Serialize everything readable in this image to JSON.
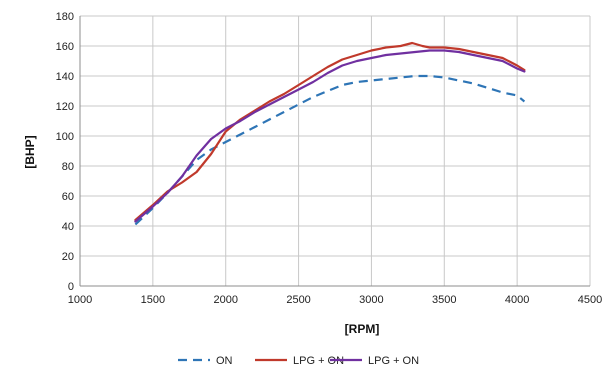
{
  "chart_data": {
    "type": "line",
    "xlabel": "[RPM]",
    "ylabel": "[BHP]",
    "xlim": [
      1000,
      4500
    ],
    "ylim": [
      0,
      180
    ],
    "xticks": [
      1000,
      1500,
      2000,
      2500,
      3000,
      3500,
      4000,
      4500
    ],
    "yticks": [
      0,
      20,
      40,
      60,
      80,
      100,
      120,
      140,
      160,
      180
    ],
    "grid": true,
    "legend_position": "bottom",
    "series": [
      {
        "name": "ON",
        "color": "#2e75b6",
        "style": "dashed",
        "points": [
          [
            1380,
            41
          ],
          [
            1500,
            52
          ],
          [
            1600,
            62
          ],
          [
            1700,
            73
          ],
          [
            1800,
            84
          ],
          [
            1900,
            91
          ],
          [
            2000,
            96
          ],
          [
            2100,
            101
          ],
          [
            2200,
            106
          ],
          [
            2300,
            111
          ],
          [
            2400,
            116
          ],
          [
            2500,
            121
          ],
          [
            2600,
            126
          ],
          [
            2700,
            130
          ],
          [
            2800,
            134
          ],
          [
            2900,
            136
          ],
          [
            3000,
            137
          ],
          [
            3100,
            138
          ],
          [
            3200,
            139
          ],
          [
            3300,
            140
          ],
          [
            3400,
            140
          ],
          [
            3500,
            139
          ],
          [
            3600,
            137
          ],
          [
            3700,
            135
          ],
          [
            3800,
            132
          ],
          [
            3900,
            129
          ],
          [
            4000,
            127
          ],
          [
            4050,
            123
          ]
        ]
      },
      {
        "name": "LPG + ON",
        "color": "#c0392b",
        "style": "solid",
        "points": [
          [
            1380,
            44
          ],
          [
            1500,
            54
          ],
          [
            1600,
            63
          ],
          [
            1700,
            69
          ],
          [
            1800,
            76
          ],
          [
            1900,
            88
          ],
          [
            2000,
            103
          ],
          [
            2100,
            111
          ],
          [
            2200,
            117
          ],
          [
            2300,
            123
          ],
          [
            2400,
            128
          ],
          [
            2500,
            134
          ],
          [
            2600,
            140
          ],
          [
            2700,
            146
          ],
          [
            2800,
            151
          ],
          [
            2900,
            154
          ],
          [
            3000,
            157
          ],
          [
            3100,
            159
          ],
          [
            3200,
            160
          ],
          [
            3280,
            162
          ],
          [
            3350,
            160
          ],
          [
            3400,
            159
          ],
          [
            3500,
            159
          ],
          [
            3600,
            158
          ],
          [
            3700,
            156
          ],
          [
            3800,
            154
          ],
          [
            3900,
            152
          ],
          [
            4000,
            147
          ],
          [
            4050,
            144
          ]
        ]
      },
      {
        "name": "LPG + ON",
        "color": "#7030a0",
        "style": "solid",
        "points": [
          [
            1380,
            43
          ],
          [
            1500,
            53
          ],
          [
            1600,
            62
          ],
          [
            1700,
            73
          ],
          [
            1800,
            87
          ],
          [
            1900,
            98
          ],
          [
            2000,
            105
          ],
          [
            2100,
            110
          ],
          [
            2200,
            116
          ],
          [
            2300,
            121
          ],
          [
            2400,
            126
          ],
          [
            2500,
            131
          ],
          [
            2600,
            136
          ],
          [
            2700,
            142
          ],
          [
            2800,
            147
          ],
          [
            2900,
            150
          ],
          [
            3000,
            152
          ],
          [
            3100,
            154
          ],
          [
            3200,
            155
          ],
          [
            3300,
            156
          ],
          [
            3400,
            157
          ],
          [
            3500,
            157
          ],
          [
            3600,
            156
          ],
          [
            3700,
            154
          ],
          [
            3800,
            152
          ],
          [
            3900,
            150
          ],
          [
            4000,
            145
          ],
          [
            4050,
            143
          ]
        ]
      }
    ]
  }
}
